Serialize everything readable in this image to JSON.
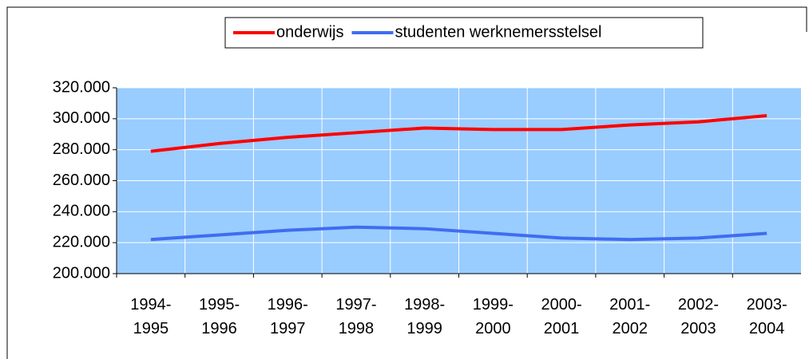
{
  "chart_data": {
    "type": "line",
    "categories": [
      "1994-1995",
      "1995-1996",
      "1996-1997",
      "1997-1998",
      "1998-1999",
      "1999-2000",
      "2000-2001",
      "2001-2002",
      "2002-2003",
      "2003-2004"
    ],
    "series": [
      {
        "name": "onderwijs",
        "color": "#ff0000",
        "values": [
          279000,
          284000,
          288000,
          291000,
          294000,
          293000,
          293000,
          296000,
          298000,
          302000
        ]
      },
      {
        "name": "studenten werknemersstelsel",
        "color": "#3f6df0",
        "values": [
          222000,
          225000,
          228000,
          230000,
          229000,
          226000,
          223000,
          222000,
          223000,
          226000
        ]
      }
    ],
    "ylim": [
      200000,
      320000
    ],
    "yticks": [
      {
        "value": 200000,
        "label": "200.000"
      },
      {
        "value": 220000,
        "label": "220.000"
      },
      {
        "value": 240000,
        "label": "240.000"
      },
      {
        "value": 260000,
        "label": "260.000"
      },
      {
        "value": 280000,
        "label": "280.000"
      },
      {
        "value": 300000,
        "label": "300.000"
      },
      {
        "value": 320000,
        "label": "320.000"
      }
    ],
    "grid": true,
    "legend": "top",
    "plot_background": "#99ccff"
  }
}
